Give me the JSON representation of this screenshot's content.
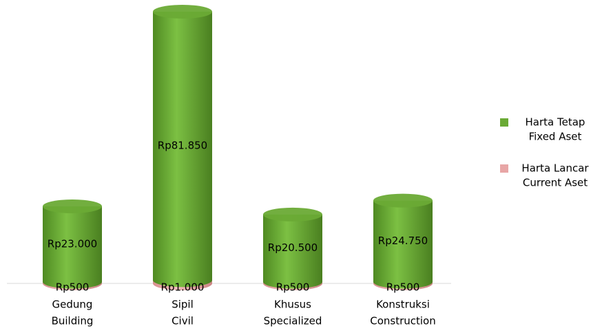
{
  "chart_data": {
    "type": "cylinder_stacked_bar",
    "categories": [
      [
        "Gedung",
        "Building"
      ],
      [
        "Sipil",
        "Civil"
      ],
      [
        "Khusus",
        "Specialized"
      ],
      [
        "Konstruksi",
        "Construction"
      ]
    ],
    "series": [
      {
        "name": [
          "Harta Lancar",
          "Current Aset"
        ],
        "color": "#e8a6a6",
        "values": [
          500,
          1000,
          500,
          500
        ],
        "value_labels": [
          "Rp500",
          "Rp1.000",
          "Rp500",
          "Rp500"
        ]
      },
      {
        "name": [
          "Harta Tetap",
          "Fixed Aset"
        ],
        "color": "#6aaa35",
        "values": [
          23000,
          81850,
          20500,
          24750
        ],
        "value_labels": [
          "Rp23.000",
          "Rp81.850",
          "Rp20.500",
          "Rp24.750"
        ]
      }
    ],
    "legend": "right"
  }
}
